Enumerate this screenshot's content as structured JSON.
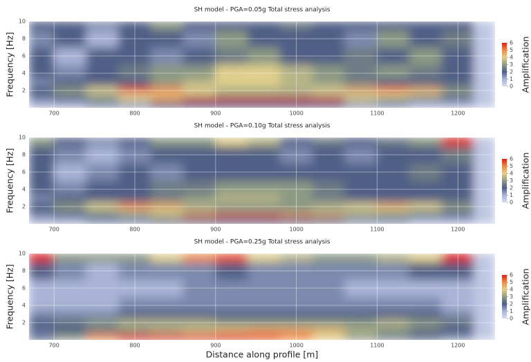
{
  "chart_data": [
    {
      "type": "heatmap",
      "title": "SH model - PGA=0.05g Total stress analysis",
      "ylabel": "Frequency [Hz]",
      "colorbar_label": "Amplification",
      "x": [
        680,
        720,
        760,
        800,
        840,
        880,
        920,
        960,
        1000,
        1040,
        1080,
        1120,
        1160,
        1200,
        1240
      ],
      "y": [
        0.5,
        1,
        1.5,
        2,
        3,
        4,
        6,
        8,
        10
      ],
      "z": [
        [
          1,
          1,
          1.5,
          1.5,
          2,
          2,
          2,
          2,
          2,
          2,
          1.5,
          1.5,
          1,
          1,
          0.5
        ],
        [
          1.5,
          2,
          3,
          4,
          5,
          6,
          6,
          6,
          6,
          5.5,
          4,
          3,
          2.5,
          2,
          0.5
        ],
        [
          2,
          2.5,
          3,
          4,
          4,
          3.5,
          3,
          3,
          3,
          3,
          3.5,
          4,
          3.5,
          2.5,
          0.5
        ],
        [
          2,
          3,
          4,
          5.5,
          5,
          4,
          3.5,
          3.5,
          3.5,
          4,
          4.5,
          5,
          4.5,
          3,
          0.5
        ],
        [
          1.5,
          2,
          2,
          2,
          3,
          3.5,
          4,
          4,
          3.5,
          3,
          2.5,
          2,
          2,
          2,
          0.5
        ],
        [
          2,
          1.5,
          2,
          2.5,
          3,
          3,
          4,
          4,
          3.5,
          3,
          2.5,
          3,
          2.5,
          2,
          0.5
        ],
        [
          2,
          1,
          2,
          2,
          1.5,
          2,
          2.5,
          3,
          2,
          2,
          2.5,
          2,
          3,
          2,
          0.5
        ],
        [
          1.5,
          2,
          1,
          2,
          2,
          1.5,
          3,
          2,
          2,
          2,
          1.5,
          3,
          2,
          2.5,
          0.5
        ],
        [
          2,
          2,
          1.5,
          2,
          3,
          2,
          2,
          2,
          2.5,
          2,
          2,
          2,
          2,
          2,
          0.5
        ]
      ],
      "xlim": [
        669,
        1246
      ],
      "ylim": [
        0,
        10
      ],
      "xticks": [
        700,
        800,
        900,
        1000,
        1100,
        1200
      ],
      "yticks": [
        2,
        4,
        6,
        8,
        10
      ],
      "clim": [
        0,
        6
      ],
      "cticks": [
        0,
        1,
        2,
        3,
        4,
        5,
        6
      ],
      "colors": [
        "#d6d9f0",
        "#a9b4d6",
        "#4f5f86",
        "#8d9a84",
        "#e0cf8c",
        "#ef8a45",
        "#dc1e14"
      ],
      "grid": true
    },
    {
      "type": "heatmap",
      "title": "SH model - PGA=0.10g Total stress analysis",
      "ylabel": "Frequency [Hz]",
      "colorbar_label": "Amplification",
      "x": [
        680,
        720,
        760,
        800,
        840,
        880,
        920,
        960,
        1000,
        1040,
        1080,
        1120,
        1160,
        1200,
        1240
      ],
      "y": [
        0.5,
        1,
        1.5,
        2,
        3,
        4,
        6,
        8,
        10
      ],
      "z": [
        [
          1,
          1,
          1.5,
          1.5,
          2,
          2,
          2,
          2,
          2,
          2,
          1.5,
          1.5,
          1,
          1,
          0.5
        ],
        [
          1.5,
          2,
          2.5,
          3,
          4,
          5,
          5.5,
          5.5,
          5,
          4.5,
          3.5,
          3,
          2.5,
          2,
          0.5
        ],
        [
          2,
          2.5,
          3,
          3.5,
          3.5,
          3,
          3,
          3,
          3,
          3,
          3,
          3.5,
          3,
          2.5,
          0.5
        ],
        [
          2,
          3,
          4,
          5,
          4.5,
          3.5,
          3,
          3,
          3,
          3.5,
          4,
          4.5,
          4,
          3,
          0.5
        ],
        [
          1.5,
          2,
          2,
          2,
          2.5,
          3,
          3.5,
          3.5,
          3,
          2.5,
          2,
          2,
          2,
          2,
          0.5
        ],
        [
          2,
          1.5,
          2,
          2,
          2.5,
          2.5,
          3,
          3,
          3,
          2.5,
          2,
          2,
          2,
          2,
          0.5
        ],
        [
          2,
          1,
          1.5,
          2,
          1.5,
          2,
          2,
          2,
          2,
          2,
          2,
          2,
          2.5,
          2,
          0.5
        ],
        [
          2,
          1.5,
          1,
          1.5,
          2,
          2,
          2,
          2,
          1.5,
          2,
          1.5,
          2,
          2,
          2.5,
          0.5
        ],
        [
          3,
          2,
          1.5,
          2,
          3,
          3,
          4,
          3.5,
          2,
          2.5,
          2,
          2.5,
          3,
          6,
          0.5
        ]
      ],
      "xlim": [
        669,
        1246
      ],
      "ylim": [
        0,
        10
      ],
      "xticks": [
        700,
        800,
        900,
        1000,
        1100,
        1200
      ],
      "yticks": [
        2,
        4,
        6,
        8,
        10
      ],
      "clim": [
        0,
        6
      ],
      "cticks": [
        0,
        1,
        2,
        3,
        4,
        5,
        6
      ],
      "colors": [
        "#d6d9f0",
        "#a9b4d6",
        "#4f5f86",
        "#8d9a84",
        "#e0cf8c",
        "#ef8a45",
        "#dc1e14"
      ],
      "grid": true
    },
    {
      "type": "heatmap",
      "title": "SH model - PGA=0.25g Total stress analysis",
      "ylabel": "Frequency [Hz]",
      "xlabel": "Distance along profile [m]",
      "colorbar_label": "Amplification",
      "x": [
        680,
        720,
        760,
        800,
        840,
        880,
        920,
        960,
        1000,
        1040,
        1080,
        1120,
        1160,
        1200,
        1240
      ],
      "y": [
        0.5,
        1,
        1.5,
        2,
        3,
        4,
        6,
        8,
        10
      ],
      "z": [
        [
          2,
          3,
          5,
          6,
          6,
          6,
          6,
          5.5,
          5,
          4,
          3,
          2.5,
          2,
          1.5,
          0.5
        ],
        [
          1.5,
          2,
          2.5,
          3,
          3.5,
          4,
          4.5,
          5,
          5,
          4.5,
          3.5,
          3,
          2.5,
          2,
          0.5
        ],
        [
          2,
          2,
          2.5,
          3,
          3,
          3,
          3.5,
          3.5,
          3.5,
          3.5,
          3,
          3,
          2.5,
          2,
          0.5
        ],
        [
          2,
          2.5,
          3,
          3.5,
          3.5,
          3.5,
          3,
          3,
          3,
          3,
          3,
          3.5,
          3,
          2.5,
          0.5
        ],
        [
          1.5,
          1.5,
          1.5,
          2,
          2,
          2,
          2,
          2,
          2,
          2,
          2,
          2,
          2,
          1.5,
          0.5
        ],
        [
          1,
          1,
          1,
          1.5,
          1.5,
          1.5,
          1.5,
          1.5,
          1.5,
          1.5,
          1.5,
          1.5,
          1.5,
          1,
          0.5
        ],
        [
          1,
          1,
          1,
          1,
          1,
          1.5,
          1.5,
          1.5,
          1.5,
          1.5,
          1,
          1,
          1,
          1,
          0.5
        ],
        [
          2,
          1.5,
          1,
          1.5,
          1.5,
          1.5,
          2,
          1.5,
          1.5,
          1.5,
          1.5,
          1.5,
          2,
          2,
          0.5
        ],
        [
          6,
          3,
          3,
          3,
          4,
          5,
          5.5,
          4,
          3.5,
          3,
          3,
          3.5,
          4,
          6,
          0.5
        ]
      ],
      "xlim": [
        669,
        1246
      ],
      "ylim": [
        0,
        10
      ],
      "xticks": [
        700,
        800,
        900,
        1000,
        1100,
        1200
      ],
      "yticks": [
        2,
        4,
        6,
        8,
        10
      ],
      "clim": [
        0,
        6
      ],
      "cticks": [
        0,
        1,
        2,
        3,
        4,
        5,
        6
      ],
      "colors": [
        "#d6d9f0",
        "#a9b4d6",
        "#4f5f86",
        "#8d9a84",
        "#e0cf8c",
        "#ef8a45",
        "#dc1e14"
      ],
      "grid": true
    }
  ]
}
